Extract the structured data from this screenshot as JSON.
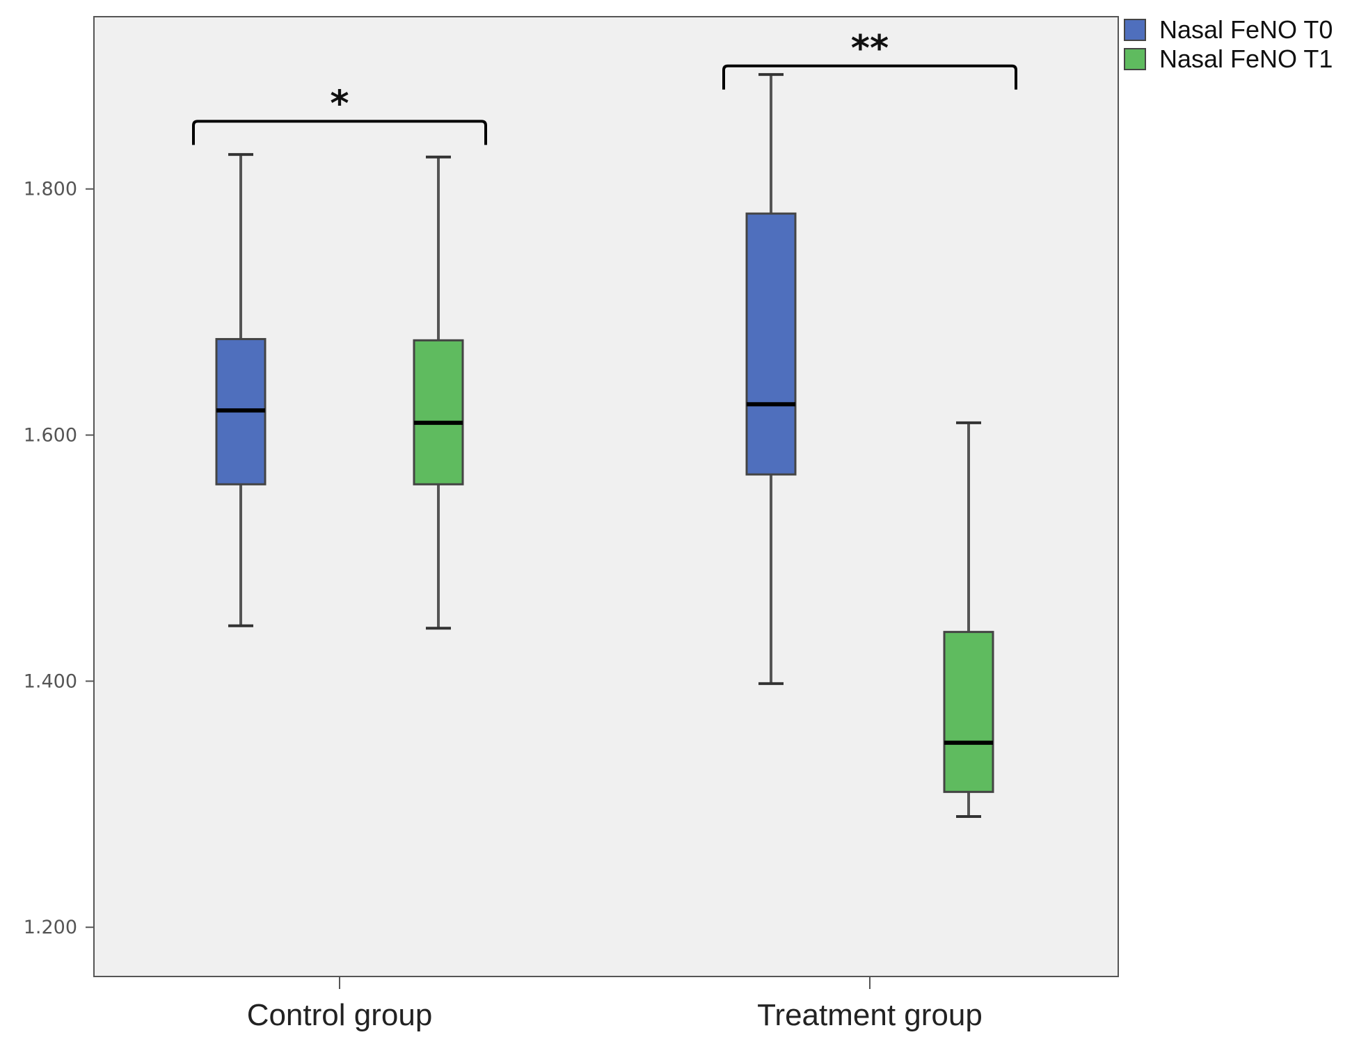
{
  "chart_data": {
    "type": "boxplot",
    "title": "",
    "xlabel": "",
    "ylabel": "",
    "ylim": [
      1.16,
      1.94
    ],
    "yticks": [
      1.2,
      1.4,
      1.6,
      1.8
    ],
    "ytick_labels": [
      "1.200",
      "1.400",
      "1.600",
      "1.800"
    ],
    "categories": [
      "Control group",
      "Treatment group"
    ],
    "series": [
      {
        "name": "Nasal FeNO T0",
        "color": "#4f6fbd",
        "boxes": [
          {
            "min": 1.445,
            "q1": 1.56,
            "median": 1.62,
            "q3": 1.678,
            "max": 1.828
          },
          {
            "min": 1.398,
            "q1": 1.568,
            "median": 1.625,
            "q3": 1.78,
            "max": 1.893
          }
        ]
      },
      {
        "name": "Nasal FeNO T1",
        "color": "#5fbb5f",
        "boxes": [
          {
            "min": 1.443,
            "q1": 1.56,
            "median": 1.61,
            "q3": 1.677,
            "max": 1.826
          },
          {
            "min": 1.29,
            "q1": 1.31,
            "median": 1.35,
            "q3": 1.44,
            "max": 1.61
          }
        ]
      }
    ],
    "significance": [
      {
        "category": "Control group",
        "label": "*",
        "bracket_y": 1.855
      },
      {
        "category": "Treatment group",
        "label": "**",
        "bracket_y": 1.9
      }
    ],
    "legend_position": "top-right",
    "grid": false,
    "plot_background": "#f0f0f0"
  }
}
